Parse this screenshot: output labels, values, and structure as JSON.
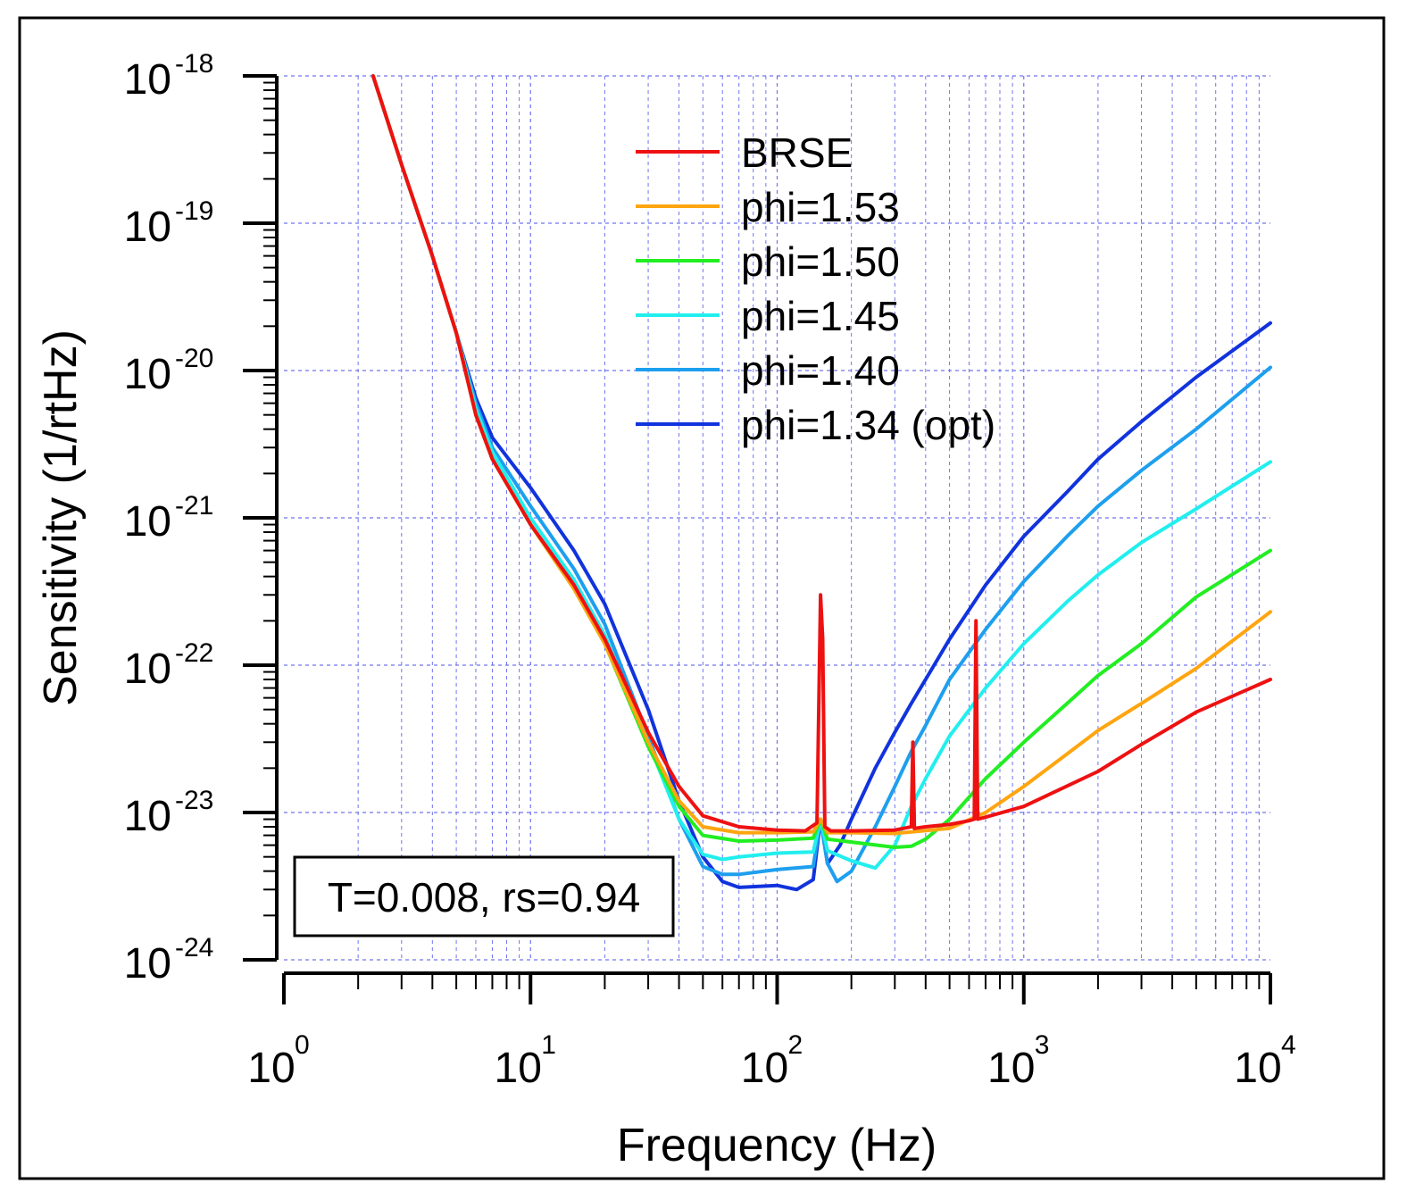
{
  "chart_data": {
    "type": "line",
    "xlabel": "Frequency (Hz)",
    "ylabel": "Sensitivity (1/rtHz)",
    "xscale": "log",
    "yscale": "log",
    "xlim": [
      1,
      10000
    ],
    "ylim": [
      1e-24,
      1e-18
    ],
    "grid": true,
    "legend_position": "top-right",
    "x_ticks": [
      {
        "value": 1,
        "base": "10",
        "exp": "0"
      },
      {
        "value": 10,
        "base": "10",
        "exp": "1"
      },
      {
        "value": 100,
        "base": "10",
        "exp": "2"
      },
      {
        "value": 1000,
        "base": "10",
        "exp": "3"
      },
      {
        "value": 10000,
        "base": "10",
        "exp": "4"
      }
    ],
    "y_ticks": [
      {
        "value": 1e-18,
        "base": "10",
        "exp": "-18"
      },
      {
        "value": 1e-19,
        "base": "10",
        "exp": "-19"
      },
      {
        "value": 1e-20,
        "base": "10",
        "exp": "-20"
      },
      {
        "value": 1e-21,
        "base": "10",
        "exp": "-21"
      },
      {
        "value": 1e-22,
        "base": "10",
        "exp": "-22"
      },
      {
        "value": 1e-23,
        "base": "10",
        "exp": "-23"
      },
      {
        "value": 1e-24,
        "base": "10",
        "exp": "-24"
      }
    ],
    "annotation": "T=0.008, rs=0.94",
    "series": [
      {
        "name": "BRSE",
        "color": "#ee1111",
        "x": [
          2.3,
          3,
          4,
          5,
          6,
          7,
          10,
          15,
          20,
          30,
          40,
          50,
          70,
          100,
          130,
          145,
          150,
          153,
          156,
          165,
          200,
          300,
          350,
          355,
          360,
          400,
          500,
          600,
          630,
          640,
          650,
          700,
          1000,
          2000,
          3000,
          5000,
          10000
        ],
        "y": [
          1e-18,
          2.5e-19,
          6e-20,
          1.8e-20,
          5e-21,
          2.5e-21,
          9e-22,
          3.5e-22,
          1.5e-22,
          3.5e-23,
          1.5e-23,
          9.5e-24,
          8e-24,
          7.6e-24,
          7.5e-24,
          8.5e-24,
          3e-22,
          1.5e-22,
          8e-24,
          7.5e-24,
          7.5e-24,
          7.6e-24,
          8e-24,
          3e-23,
          7.8e-24,
          8e-24,
          8.3e-24,
          8.8e-24,
          9e-24,
          2e-22,
          9e-24,
          9.3e-24,
          1.1e-23,
          1.9e-23,
          2.9e-23,
          4.8e-23,
          8e-23
        ]
      },
      {
        "name": "phi=1.53",
        "color": "#ffa510",
        "x": [
          2.3,
          3,
          4,
          5,
          6,
          7,
          10,
          15,
          20,
          30,
          40,
          50,
          70,
          100,
          140,
          150,
          160,
          200,
          300,
          500,
          700,
          1000,
          1500,
          2000,
          3000,
          5000,
          10000
        ],
        "y": [
          1e-18,
          2.5e-19,
          6e-20,
          1.8e-20,
          5e-21,
          2.5e-21,
          9e-22,
          3.3e-22,
          1.4e-22,
          3e-23,
          1.2e-23,
          8e-24,
          7.3e-24,
          7.3e-24,
          7.4e-24,
          9e-24,
          7.3e-24,
          7.3e-24,
          7.2e-24,
          7.8e-24,
          1e-23,
          1.5e-23,
          2.5e-23,
          3.6e-23,
          5.5e-23,
          9.5e-23,
          2.3e-22
        ]
      },
      {
        "name": "phi=1.50",
        "color": "#22ee22",
        "x": [
          2.3,
          3,
          4,
          5,
          6,
          7,
          10,
          15,
          20,
          30,
          40,
          50,
          70,
          100,
          140,
          150,
          160,
          200,
          300,
          350,
          400,
          500,
          700,
          1000,
          1500,
          2000,
          3000,
          5000,
          10000
        ],
        "y": [
          1e-18,
          2.5e-19,
          6e-20,
          1.8e-20,
          5e-21,
          2.5e-21,
          9e-22,
          3.3e-22,
          1.4e-22,
          2.8e-23,
          1.1e-23,
          7e-24,
          6.4e-24,
          6.5e-24,
          6.7e-24,
          9e-24,
          6.6e-24,
          6.3e-24,
          5.8e-24,
          5.9e-24,
          6.6e-24,
          9e-24,
          1.7e-23,
          3e-23,
          5.5e-23,
          8.5e-23,
          1.4e-22,
          2.9e-22,
          6e-22
        ]
      },
      {
        "name": "phi=1.45",
        "color": "#22eeee",
        "x": [
          2.3,
          3,
          4,
          5,
          6,
          7,
          10,
          15,
          20,
          30,
          40,
          50,
          60,
          70,
          100,
          140,
          150,
          160,
          200,
          250,
          300,
          350,
          400,
          500,
          700,
          1000,
          1500,
          2000,
          3000,
          5000,
          10000
        ],
        "y": [
          1e-18,
          2.5e-19,
          6e-20,
          1.8e-20,
          5.5e-21,
          2.8e-21,
          1e-21,
          3.8e-22,
          1.6e-22,
          3e-23,
          9e-24,
          5.2e-24,
          4.8e-24,
          5e-24,
          5.3e-24,
          5.4e-24,
          9e-24,
          5.5e-24,
          4.7e-24,
          4.2e-24,
          6e-24,
          1.1e-23,
          1.7e-23,
          3.3e-23,
          7e-23,
          1.4e-22,
          2.7e-22,
          4.1e-22,
          6.8e-22,
          1.15e-21,
          2.4e-21
        ]
      },
      {
        "name": "phi=1.40",
        "color": "#1e9fee",
        "x": [
          2.3,
          3,
          4,
          5,
          6,
          7,
          10,
          15,
          20,
          30,
          40,
          50,
          60,
          70,
          100,
          140,
          150,
          160,
          175,
          200,
          250,
          300,
          350,
          400,
          500,
          700,
          1000,
          1500,
          2000,
          3000,
          5000,
          10000
        ],
        "y": [
          1e-18,
          2.5e-19,
          6e-20,
          1.8e-20,
          6e-21,
          3e-21,
          1.2e-21,
          4.5e-22,
          1.9e-22,
          3.3e-23,
          9e-24,
          4.3e-24,
          3.8e-24,
          3.8e-24,
          4.1e-24,
          4.3e-24,
          9e-24,
          4.5e-24,
          3.4e-24,
          4e-24,
          8e-24,
          1.5e-23,
          2.6e-23,
          3.9e-23,
          8e-23,
          1.75e-22,
          3.7e-22,
          7.5e-22,
          1.2e-21,
          2.1e-21,
          4e-21,
          1.05e-20
        ]
      },
      {
        "name": "phi=1.34 (opt)",
        "color": "#1133dd",
        "x": [
          2.3,
          3,
          4,
          5,
          6,
          7,
          10,
          15,
          20,
          30,
          40,
          50,
          60,
          70,
          100,
          120,
          140,
          150,
          160,
          180,
          200,
          250,
          300,
          350,
          400,
          500,
          700,
          1000,
          1500,
          2000,
          3000,
          5000,
          10000
        ],
        "y": [
          1e-18,
          2.5e-19,
          6e-20,
          1.8e-20,
          6.5e-21,
          3.5e-21,
          1.6e-21,
          6e-22,
          2.6e-22,
          5e-23,
          1.2e-23,
          5e-24,
          3.4e-24,
          3.1e-24,
          3.2e-24,
          3e-24,
          3.5e-24,
          9e-24,
          4.5e-24,
          6e-24,
          9e-24,
          2e-23,
          3.5e-23,
          5.5e-23,
          8e-23,
          1.5e-22,
          3.5e-22,
          7.5e-22,
          1.5e-21,
          2.5e-21,
          4.5e-21,
          9e-21,
          2.1e-20
        ]
      }
    ]
  }
}
